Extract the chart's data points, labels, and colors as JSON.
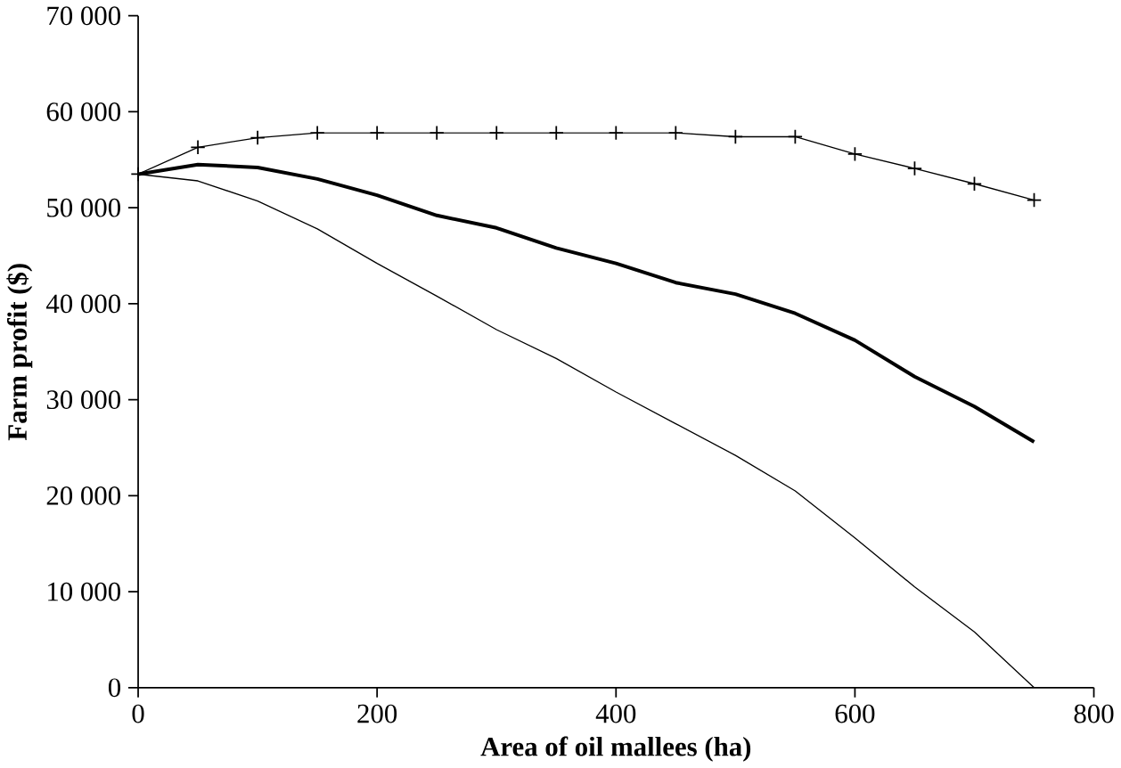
{
  "chart_data": {
    "type": "line",
    "xlabel": "Area of oil mallees (ha)",
    "ylabel": "Farm profit ($)",
    "x": [
      0,
      50,
      100,
      150,
      200,
      250,
      300,
      350,
      400,
      450,
      500,
      550,
      600,
      650,
      700,
      750
    ],
    "series": [
      {
        "color": "#000000",
        "marker": "cross",
        "values": [
          53500,
          56300,
          57300,
          57800,
          57800,
          57800,
          57800,
          57800,
          57800,
          57800,
          57400,
          57400,
          55600,
          54100,
          52500,
          50800
        ]
      },
      {
        "color": "#000000",
        "marker": "none",
        "values": [
          53500,
          54500,
          54200,
          53000,
          51300,
          49200,
          47900,
          45800,
          44200,
          42200,
          41000,
          39000,
          36200,
          32400,
          29300,
          25600
        ]
      },
      {
        "color": "#000000",
        "marker": "none",
        "values": [
          53500,
          52800,
          50700,
          47800,
          44200,
          40800,
          37300,
          34300,
          30800,
          27500,
          24200,
          20500,
          15600,
          10500,
          5800,
          0
        ]
      }
    ],
    "xlim": [
      0,
      800
    ],
    "xticks": [
      0,
      200,
      400,
      600,
      800
    ],
    "ylim": [
      0,
      70000
    ],
    "yticks": [
      {
        "value": 0,
        "label": "0"
      },
      {
        "value": 10000,
        "label": "10 000"
      },
      {
        "value": 20000,
        "label": "20 000"
      },
      {
        "value": 30000,
        "label": "30 000"
      },
      {
        "value": 40000,
        "label": "40 000"
      },
      {
        "value": 50000,
        "label": "50 000"
      },
      {
        "value": 60000,
        "label": "60 000"
      },
      {
        "value": 70000,
        "label": "70 000"
      }
    ],
    "grid": false
  }
}
